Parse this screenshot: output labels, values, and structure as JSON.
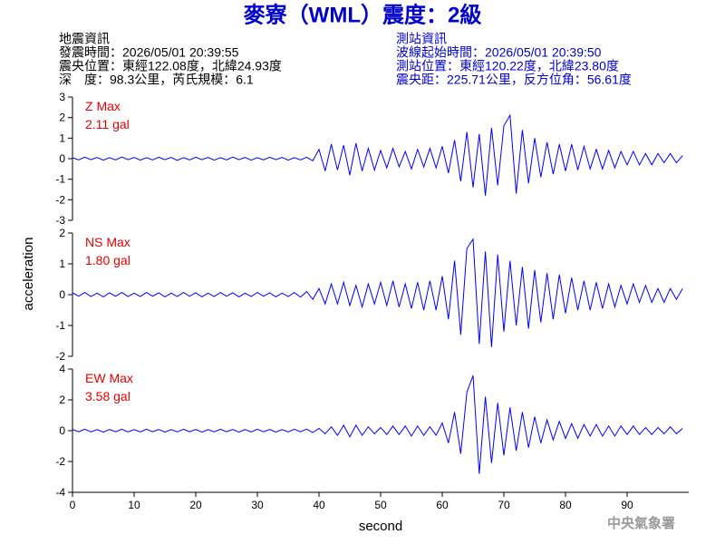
{
  "header": {
    "title": "麥寮（WML）震度：2級",
    "event_info": [
      "地震資訊",
      "發震時間：2026/05/01 20:39:55",
      "震央位置：東經122.08度，北緯24.93度",
      "深　度：98.3公里，芮氏規模：6.1"
    ],
    "station_info": [
      "測站資訊",
      "波線起始時間：2026/05/01 20:39:50",
      "測站位置：東經120.22度，北緯23.80度",
      "震央距：225.71公里，反方位角：56.61度"
    ]
  },
  "ylabel": "acceleration",
  "footer": "中央氣象署",
  "chart_data": [
    {
      "type": "line",
      "label": "Z Max",
      "max_label": "2.11 gal",
      "label_color": "#e00000",
      "xlim": [
        0,
        100
      ],
      "ylim": [
        -3,
        3
      ],
      "yticks": [
        -3,
        -2,
        -1,
        0,
        1,
        2,
        3
      ],
      "x": [
        0,
        1,
        2,
        3,
        4,
        5,
        6,
        7,
        8,
        9,
        10,
        11,
        12,
        13,
        14,
        15,
        16,
        17,
        18,
        19,
        20,
        21,
        22,
        23,
        24,
        25,
        26,
        27,
        28,
        29,
        30,
        31,
        32,
        33,
        34,
        35,
        36,
        37,
        38,
        39,
        40,
        41,
        42,
        43,
        44,
        45,
        46,
        47,
        48,
        49,
        50,
        51,
        52,
        53,
        54,
        55,
        56,
        57,
        58,
        59,
        60,
        61,
        62,
        63,
        64,
        65,
        66,
        67,
        68,
        69,
        70,
        71,
        72,
        73,
        74,
        75,
        76,
        77,
        78,
        79,
        80,
        81,
        82,
        83,
        84,
        85,
        86,
        87,
        88,
        89,
        90,
        91,
        92,
        93,
        94,
        95,
        96,
        97,
        98,
        99
      ],
      "series": [
        {
          "color": "#0000ff",
          "values": [
            0.05,
            -0.06,
            0.07,
            -0.05,
            0.06,
            -0.07,
            0.05,
            -0.06,
            0.08,
            -0.05,
            0.06,
            -0.07,
            0.05,
            -0.06,
            0.07,
            -0.05,
            0.06,
            -0.08,
            0.05,
            -0.06,
            0.07,
            -0.05,
            0.06,
            -0.07,
            0.05,
            -0.06,
            0.08,
            -0.05,
            0.06,
            -0.07,
            0.05,
            -0.06,
            0.07,
            -0.05,
            0.06,
            -0.07,
            0.05,
            -0.06,
            0.07,
            -0.1,
            0.45,
            -0.6,
            0.7,
            -0.55,
            0.65,
            -0.8,
            0.75,
            -0.6,
            0.5,
            -0.55,
            0.4,
            -0.45,
            0.5,
            -0.4,
            0.35,
            -0.5,
            0.45,
            -0.4,
            0.5,
            -0.45,
            0.6,
            -0.7,
            0.9,
            -1.1,
            1.3,
            -1.4,
            1.2,
            -1.8,
            1.5,
            -1.3,
            1.6,
            2.11,
            -1.7,
            1.4,
            -1.2,
            1.0,
            -0.9,
            0.8,
            -0.75,
            0.7,
            -0.6,
            0.7,
            -0.55,
            0.6,
            -0.5,
            0.45,
            -0.5,
            0.4,
            -0.45,
            0.35,
            -0.3,
            0.35,
            -0.3,
            0.25,
            -0.3,
            0.25,
            -0.2,
            0.25,
            -0.2,
            0.15
          ]
        }
      ]
    },
    {
      "type": "line",
      "label": "NS Max",
      "max_label": "1.80 gal",
      "label_color": "#e00000",
      "xlim": [
        0,
        100
      ],
      "ylim": [
        -2,
        2
      ],
      "yticks": [
        -2,
        -1,
        0,
        1,
        2
      ],
      "x": [
        0,
        1,
        2,
        3,
        4,
        5,
        6,
        7,
        8,
        9,
        10,
        11,
        12,
        13,
        14,
        15,
        16,
        17,
        18,
        19,
        20,
        21,
        22,
        23,
        24,
        25,
        26,
        27,
        28,
        29,
        30,
        31,
        32,
        33,
        34,
        35,
        36,
        37,
        38,
        39,
        40,
        41,
        42,
        43,
        44,
        45,
        46,
        47,
        48,
        49,
        50,
        51,
        52,
        53,
        54,
        55,
        56,
        57,
        58,
        59,
        60,
        61,
        62,
        63,
        64,
        65,
        66,
        67,
        68,
        69,
        70,
        71,
        72,
        73,
        74,
        75,
        76,
        77,
        78,
        79,
        80,
        81,
        82,
        83,
        84,
        85,
        86,
        87,
        88,
        89,
        90,
        91,
        92,
        93,
        94,
        95,
        96,
        97,
        98,
        99
      ],
      "series": [
        {
          "color": "#0000ff",
          "values": [
            0.06,
            -0.05,
            0.07,
            -0.06,
            0.05,
            -0.07,
            0.06,
            -0.05,
            0.07,
            -0.06,
            0.05,
            -0.06,
            0.07,
            -0.05,
            0.06,
            -0.07,
            0.05,
            -0.06,
            0.07,
            -0.05,
            0.06,
            -0.07,
            0.05,
            -0.06,
            0.07,
            -0.05,
            0.06,
            -0.07,
            0.05,
            -0.06,
            0.07,
            -0.05,
            0.06,
            -0.07,
            0.05,
            -0.06,
            0.07,
            -0.08,
            0.1,
            -0.15,
            0.2,
            -0.3,
            0.35,
            -0.3,
            0.4,
            -0.35,
            0.3,
            -0.4,
            0.35,
            -0.3,
            0.4,
            -0.35,
            0.45,
            -0.4,
            0.35,
            -0.45,
            0.4,
            -0.5,
            0.45,
            -0.5,
            0.6,
            -0.8,
            1.1,
            -1.3,
            1.5,
            1.8,
            -1.6,
            1.4,
            -1.7,
            1.3,
            -1.2,
            1.1,
            -1.0,
            0.9,
            -1.1,
            0.8,
            -0.9,
            0.7,
            -0.8,
            0.65,
            -0.6,
            0.55,
            -0.5,
            0.45,
            -0.5,
            0.4,
            -0.45,
            0.35,
            -0.4,
            0.3,
            -0.3,
            0.35,
            -0.25,
            0.3,
            -0.25,
            0.2,
            -0.25,
            0.2,
            -0.15,
            0.2
          ]
        }
      ]
    },
    {
      "type": "line",
      "label": "EW Max",
      "max_label": "3.58 gal",
      "label_color": "#e00000",
      "xlim": [
        0,
        100
      ],
      "ylim": [
        -4,
        4
      ],
      "yticks": [
        -4,
        -2,
        0,
        2,
        4
      ],
      "xticks": [
        0,
        10,
        20,
        30,
        40,
        50,
        60,
        70,
        80,
        90
      ],
      "xlabel": "second",
      "x": [
        0,
        1,
        2,
        3,
        4,
        5,
        6,
        7,
        8,
        9,
        10,
        11,
        12,
        13,
        14,
        15,
        16,
        17,
        18,
        19,
        20,
        21,
        22,
        23,
        24,
        25,
        26,
        27,
        28,
        29,
        30,
        31,
        32,
        33,
        34,
        35,
        36,
        37,
        38,
        39,
        40,
        41,
        42,
        43,
        44,
        45,
        46,
        47,
        48,
        49,
        50,
        51,
        52,
        53,
        54,
        55,
        56,
        57,
        58,
        59,
        60,
        61,
        62,
        63,
        64,
        65,
        66,
        67,
        68,
        69,
        70,
        71,
        72,
        73,
        74,
        75,
        76,
        77,
        78,
        79,
        80,
        81,
        82,
        83,
        84,
        85,
        86,
        87,
        88,
        89,
        90,
        91,
        92,
        93,
        94,
        95,
        96,
        97,
        98,
        99
      ],
      "series": [
        {
          "color": "#0000ff",
          "values": [
            0.08,
            -0.07,
            0.09,
            -0.08,
            0.07,
            -0.09,
            0.08,
            -0.07,
            0.09,
            -0.08,
            0.07,
            -0.08,
            0.09,
            -0.07,
            0.08,
            -0.09,
            0.07,
            -0.08,
            0.09,
            -0.07,
            0.08,
            -0.09,
            0.07,
            -0.08,
            0.09,
            -0.07,
            0.08,
            -0.09,
            0.07,
            -0.08,
            0.09,
            -0.07,
            0.08,
            -0.09,
            0.07,
            -0.08,
            0.09,
            -0.07,
            0.1,
            -0.12,
            0.15,
            -0.2,
            0.25,
            -0.3,
            0.35,
            -0.4,
            0.35,
            -0.3,
            0.25,
            -0.2,
            0.2,
            -0.25,
            0.3,
            -0.25,
            0.3,
            -0.35,
            0.3,
            -0.3,
            0.25,
            -0.3,
            0.5,
            -0.8,
            1.2,
            -1.5,
            2.5,
            3.58,
            -2.8,
            2.2,
            -2.1,
            1.8,
            -1.6,
            1.5,
            -1.3,
            1.2,
            -1.1,
            0.9,
            -0.8,
            0.7,
            -0.6,
            0.6,
            -0.5,
            0.45,
            -0.5,
            0.4,
            -0.35,
            0.4,
            -0.35,
            0.3,
            -0.35,
            0.3,
            -0.25,
            0.3,
            -0.25,
            0.2,
            -0.25,
            0.2,
            -0.2,
            0.25,
            -0.2,
            0.15
          ]
        }
      ]
    }
  ]
}
